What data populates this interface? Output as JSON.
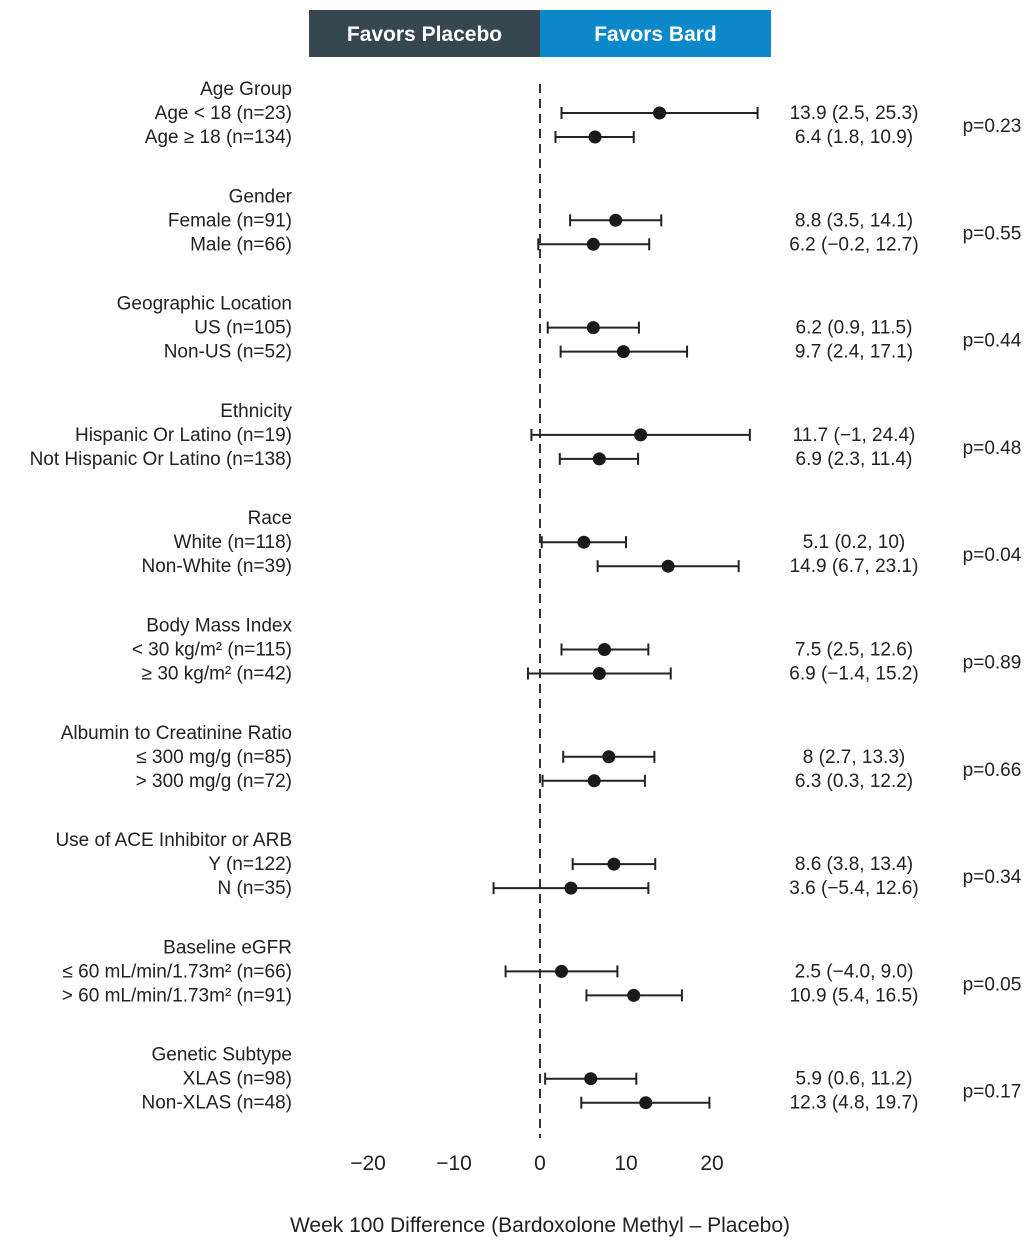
{
  "header": {
    "left_label": "Favors Placebo",
    "right_label": "Favors Bard",
    "left_color": "#37474f",
    "right_color": "#0b88c9"
  },
  "chart_data": {
    "type": "forest",
    "xlabel": "Week 100 Difference (Bardoxolone Methyl – Placebo)",
    "xlim": [
      -25,
      25
    ],
    "x_ticks": [
      -20,
      -10,
      0,
      10,
      20
    ],
    "x_tick_labels": [
      "−20",
      "−10",
      "0",
      "10",
      "20"
    ],
    "reference_line": 0,
    "groups": [
      {
        "title": "Age Group",
        "p_value": "p=0.23",
        "rows": [
          {
            "label": "Age < 18 (n=23)",
            "estimate": 13.9,
            "lower": 2.5,
            "upper": 25.3,
            "text": "13.9 (2.5, 25.3)"
          },
          {
            "label": "Age ≥ 18 (n=134)",
            "estimate": 6.4,
            "lower": 1.8,
            "upper": 10.9,
            "text": "6.4 (1.8, 10.9)"
          }
        ]
      },
      {
        "title": "Gender",
        "p_value": "p=0.55",
        "rows": [
          {
            "label": "Female (n=91)",
            "estimate": 8.8,
            "lower": 3.5,
            "upper": 14.1,
            "text": "8.8 (3.5, 14.1)"
          },
          {
            "label": "Male (n=66)",
            "estimate": 6.2,
            "lower": -0.2,
            "upper": 12.7,
            "text": "6.2 (−0.2, 12.7)"
          }
        ]
      },
      {
        "title": "Geographic Location",
        "p_value": "p=0.44",
        "rows": [
          {
            "label": "US (n=105)",
            "estimate": 6.2,
            "lower": 0.9,
            "upper": 11.5,
            "text": "6.2 (0.9, 11.5)"
          },
          {
            "label": "Non-US (n=52)",
            "estimate": 9.7,
            "lower": 2.4,
            "upper": 17.1,
            "text": "9.7 (2.4, 17.1)"
          }
        ]
      },
      {
        "title": "Ethnicity",
        "p_value": "p=0.48",
        "rows": [
          {
            "label": "Hispanic Or Latino (n=19)",
            "estimate": 11.7,
            "lower": -1,
            "upper": 24.4,
            "text": "11.7 (−1, 24.4)"
          },
          {
            "label": "Not Hispanic Or Latino (n=138)",
            "estimate": 6.9,
            "lower": 2.3,
            "upper": 11.4,
            "text": "6.9 (2.3, 11.4)"
          }
        ]
      },
      {
        "title": "Race",
        "p_value": "p=0.04",
        "rows": [
          {
            "label": "White (n=118)",
            "estimate": 5.1,
            "lower": 0.2,
            "upper": 10,
            "text": "5.1 (0.2, 10)"
          },
          {
            "label": "Non-White (n=39)",
            "estimate": 14.9,
            "lower": 6.7,
            "upper": 23.1,
            "text": "14.9 (6.7, 23.1)"
          }
        ]
      },
      {
        "title": "Body Mass Index",
        "p_value": "p=0.89",
        "rows": [
          {
            "label": "< 30 kg/m² (n=115)",
            "estimate": 7.5,
            "lower": 2.5,
            "upper": 12.6,
            "text": "7.5 (2.5, 12.6)"
          },
          {
            "label": "≥ 30 kg/m² (n=42)",
            "estimate": 6.9,
            "lower": -1.4,
            "upper": 15.2,
            "text": "6.9 (−1.4, 15.2)"
          }
        ]
      },
      {
        "title": "Albumin to Creatinine Ratio",
        "p_value": "p=0.66",
        "rows": [
          {
            "label": "≤ 300 mg/g (n=85)",
            "estimate": 8,
            "lower": 2.7,
            "upper": 13.3,
            "text": "8 (2.7, 13.3)"
          },
          {
            "label": "> 300 mg/g (n=72)",
            "estimate": 6.3,
            "lower": 0.3,
            "upper": 12.2,
            "text": "6.3 (0.3, 12.2)"
          }
        ]
      },
      {
        "title": "Use of ACE Inhibitor or ARB",
        "p_value": "p=0.34",
        "rows": [
          {
            "label": "Y (n=122)",
            "estimate": 8.6,
            "lower": 3.8,
            "upper": 13.4,
            "text": "8.6 (3.8, 13.4)"
          },
          {
            "label": "N (n=35)",
            "estimate": 3.6,
            "lower": -5.4,
            "upper": 12.6,
            "text": "3.6 (−5.4, 12.6)"
          }
        ]
      },
      {
        "title": "Baseline eGFR",
        "p_value": "p=0.05",
        "rows": [
          {
            "label": "≤ 60 mL/min/1.73m² (n=66)",
            "estimate": 2.5,
            "lower": -4.0,
            "upper": 9.0,
            "text": "2.5 (−4.0, 9.0)"
          },
          {
            "label": "> 60 mL/min/1.73m² (n=91)",
            "estimate": 10.9,
            "lower": 5.4,
            "upper": 16.5,
            "text": "10.9 (5.4, 16.5)"
          }
        ]
      },
      {
        "title": "Genetic Subtype",
        "p_value": "p=0.17",
        "rows": [
          {
            "label": "XLAS (n=98)",
            "estimate": 5.9,
            "lower": 0.6,
            "upper": 11.2,
            "text": "5.9 (0.6, 11.2)"
          },
          {
            "label": "Non-XLAS (n=48)",
            "estimate": 12.3,
            "lower": 4.8,
            "upper": 19.7,
            "text": "12.3 (4.8, 19.7)"
          }
        ]
      }
    ]
  }
}
